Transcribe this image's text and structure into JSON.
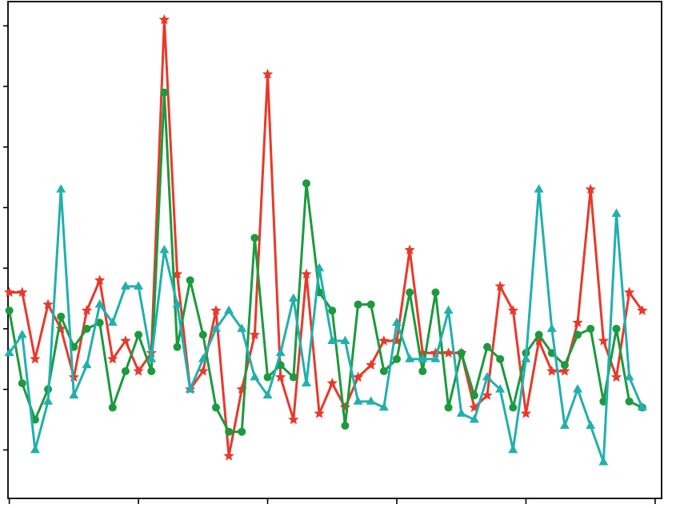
{
  "chart_data": {
    "type": "line",
    "title": "",
    "xlabel": "",
    "ylabel": "",
    "grid": false,
    "legend": "none",
    "x": [
      0,
      1,
      2,
      3,
      4,
      5,
      6,
      7,
      8,
      9,
      10,
      11,
      12,
      13,
      14,
      15,
      16,
      17,
      18,
      19,
      20,
      21,
      22,
      23,
      24,
      25,
      26,
      27,
      28,
      29,
      30,
      31,
      32,
      33,
      34,
      35,
      36,
      37,
      38,
      39,
      40,
      41,
      42,
      43,
      44,
      45,
      46,
      47,
      48,
      49
    ],
    "xlim": [
      -0.1,
      50.5
    ],
    "ylim": [
      -0.8,
      7.4
    ],
    "series": [
      {
        "marker": "star",
        "color": "#e8392b",
        "values": [
          2.6,
          2.6,
          1.5,
          2.4,
          2.0,
          1.2,
          2.3,
          2.8,
          1.5,
          1.8,
          1.3,
          1.6,
          7.1,
          2.9,
          1.0,
          1.3,
          2.3,
          -0.1,
          1.0,
          1.9,
          6.2,
          1.2,
          0.5,
          2.9,
          0.6,
          1.1,
          0.7,
          1.2,
          1.4,
          1.8,
          1.8,
          3.3,
          1.6,
          1.6,
          1.6,
          1.6,
          0.7,
          0.9,
          2.7,
          2.3,
          0.6,
          1.8,
          1.3,
          1.3,
          2.1,
          4.3,
          1.8,
          1.2,
          2.6,
          2.3
        ]
      },
      {
        "marker": "circle",
        "color": "#1b9a3e",
        "values": [
          2.3,
          1.1,
          0.5,
          1.0,
          2.2,
          1.7,
          2.0,
          2.1,
          0.7,
          1.3,
          1.9,
          1.3,
          5.9,
          1.7,
          2.8,
          1.9,
          0.7,
          0.3,
          0.3,
          3.5,
          1.2,
          1.4,
          1.2,
          4.4,
          2.6,
          2.3,
          0.4,
          2.4,
          2.4,
          1.3,
          1.5,
          2.6,
          1.3,
          2.6,
          0.7,
          1.6,
          0.9,
          1.7,
          1.5,
          0.7,
          1.6,
          1.9,
          1.6,
          1.4,
          1.9,
          2.0,
          0.8,
          2.0,
          0.8,
          0.7
        ]
      },
      {
        "marker": "triangle",
        "color": "#21b0ad",
        "values": [
          1.6,
          1.9,
          0.0,
          0.8,
          4.3,
          0.9,
          1.4,
          2.4,
          2.1,
          2.7,
          2.7,
          1.5,
          3.3,
          2.4,
          1.0,
          1.5,
          2.0,
          2.3,
          2.0,
          1.2,
          0.9,
          1.6,
          2.5,
          1.1,
          3.0,
          1.8,
          1.8,
          0.8,
          0.8,
          0.7,
          2.1,
          1.5,
          1.5,
          1.5,
          2.3,
          0.6,
          0.5,
          1.2,
          1.0,
          0.0,
          1.5,
          4.3,
          2.0,
          0.4,
          1.0,
          0.4,
          -0.2,
          3.9,
          1.2,
          0.7
        ]
      }
    ]
  }
}
